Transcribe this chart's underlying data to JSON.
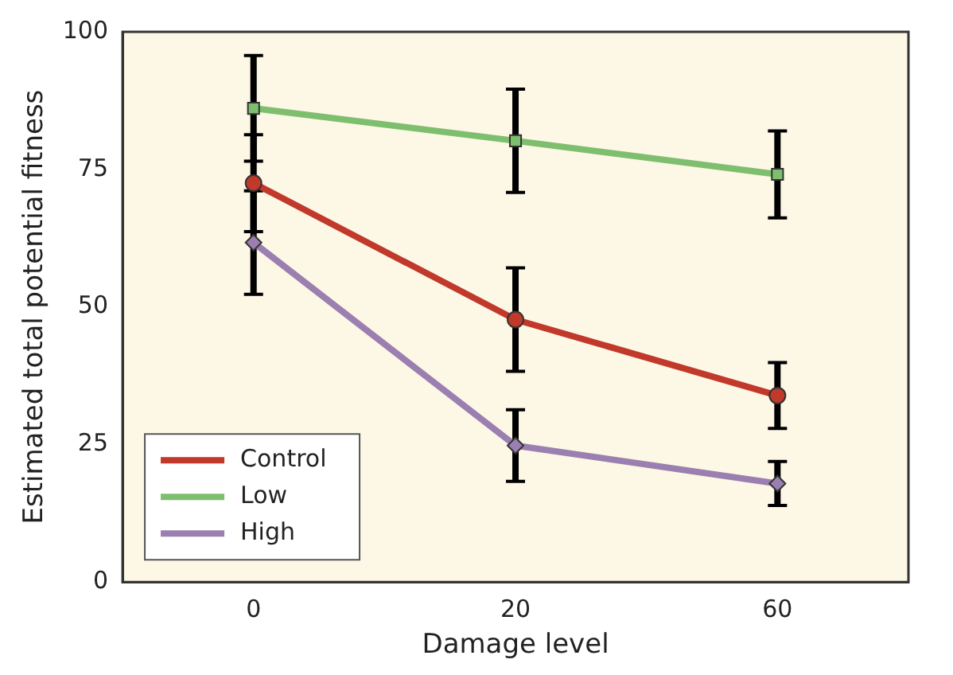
{
  "chart_data": {
    "type": "line",
    "xlabel": "Damage level",
    "ylabel": "Estimated total potential fitness",
    "categories": [
      "0",
      "20",
      "60"
    ],
    "ylim": [
      0,
      100
    ],
    "yticks": [
      0,
      25,
      50,
      75,
      100
    ],
    "grid": false,
    "legend": "bottom left",
    "line_style": "solid",
    "series": [
      {
        "name": "Control",
        "color": "#c0392b",
        "marker": "circle",
        "values": [
          72.5,
          47.7,
          33.9
        ],
        "errors": [
          8.8,
          9.4,
          6
        ]
      },
      {
        "name": "Low",
        "color": "#7dbf6e",
        "marker": "square",
        "values": [
          86.1,
          80.2,
          74.1
        ],
        "errors": [
          9.6,
          9.4,
          7.9
        ]
      },
      {
        "name": "High",
        "color": "#9b7fb0",
        "marker": "diamond",
        "values": [
          61.7,
          24.8,
          17.9
        ],
        "errors": [
          9.4,
          6.5,
          4
        ]
      }
    ]
  }
}
